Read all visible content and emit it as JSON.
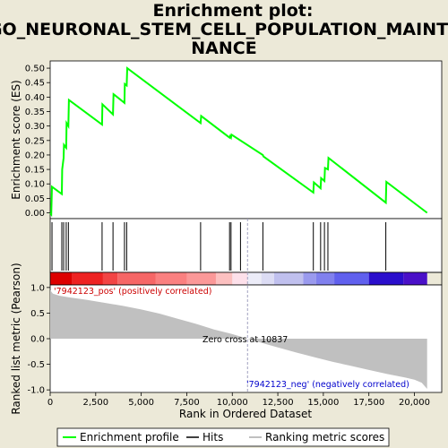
{
  "chart_data": {
    "type": "line",
    "title_lines": [
      "Enrichment plot:",
      "GO_NEURONAL_STEM_CELL_POPULATION_MAINTE",
      "NANCE"
    ],
    "top_panel": {
      "ylabel": "Enrichment score (ES)",
      "ylim": [
        -0.02,
        0.525
      ],
      "yticks": [
        0.0,
        0.05,
        0.1,
        0.15,
        0.2,
        0.25,
        0.3,
        0.35,
        0.4,
        0.45,
        0.5
      ],
      "ytick_labels": [
        "0.00",
        "0.05",
        "0.10",
        "0.15",
        "0.20",
        "0.25",
        "0.30",
        "0.35",
        "0.40",
        "0.45",
        "0.50"
      ],
      "series": [
        {
          "name": "Enrichment profile",
          "color": "#00ff00",
          "x": [
            0,
            60,
            100,
            640,
            660,
            740,
            760,
            880,
            900,
            1000,
            1030,
            2850,
            2870,
            3450,
            3480,
            4080,
            4100,
            4200,
            4230,
            8260,
            8290,
            9850,
            9880,
            9930,
            9960,
            11680,
            11710,
            14450,
            14480,
            14850,
            14880,
            15060,
            15090,
            15250,
            15280,
            18430,
            18460,
            20700
          ],
          "y": [
            0.0,
            -0.005,
            0.09,
            0.065,
            0.15,
            0.19,
            0.235,
            0.225,
            0.31,
            0.3,
            0.39,
            0.305,
            0.375,
            0.34,
            0.41,
            0.38,
            0.445,
            0.44,
            0.5,
            0.31,
            0.335,
            0.26,
            0.265,
            0.26,
            0.27,
            0.2,
            0.195,
            0.07,
            0.105,
            0.085,
            0.12,
            0.11,
            0.155,
            0.15,
            0.19,
            0.035,
            0.107,
            0.0
          ]
        }
      ]
    },
    "hits": [
      100,
      640,
      740,
      880,
      1000,
      2850,
      3450,
      4080,
      4200,
      8260,
      9850,
      9930,
      10450,
      11680,
      14450,
      14850,
      15060,
      15250,
      18430
    ],
    "colorbar": {
      "segments": [
        {
          "from": 0,
          "to": 1200,
          "color": "#dd0000"
        },
        {
          "from": 1200,
          "to": 2900,
          "color": "#ee2222"
        },
        {
          "from": 2900,
          "to": 3700,
          "color": "#f24444"
        },
        {
          "from": 3700,
          "to": 5800,
          "color": "#f66666"
        },
        {
          "from": 5800,
          "to": 7500,
          "color": "#fa8080"
        },
        {
          "from": 7500,
          "to": 9100,
          "color": "#fb9898"
        },
        {
          "from": 9100,
          "to": 10000,
          "color": "#fcc0c0"
        },
        {
          "from": 10000,
          "to": 10850,
          "color": "#fde0ea"
        },
        {
          "from": 10850,
          "to": 11600,
          "color": "#ececf8"
        },
        {
          "from": 11600,
          "to": 12300,
          "color": "#dcdcf4"
        },
        {
          "from": 12300,
          "to": 13900,
          "color": "#c0c0ee"
        },
        {
          "from": 13900,
          "to": 14600,
          "color": "#9a9aee"
        },
        {
          "from": 14600,
          "to": 15600,
          "color": "#8080ee"
        },
        {
          "from": 15600,
          "to": 17500,
          "color": "#6060ee"
        },
        {
          "from": 17500,
          "to": 19400,
          "color": "#2a0ecc"
        },
        {
          "from": 19400,
          "to": 20700,
          "color": "#4a10c8"
        }
      ]
    },
    "bottom_panel": {
      "ylabel": "Ranked list metric (Pearson)",
      "xlabel": "Rank in Ordered Dataset",
      "ylim": [
        -1.05,
        1.05
      ],
      "yticks": [
        1.0,
        0.5,
        0.0,
        -0.5,
        -1.0
      ],
      "ytick_labels": [
        "1.0",
        "0.5",
        "0.0",
        "-0.5",
        "-1.0"
      ],
      "metric": {
        "color": "#c0c0c0",
        "x": [
          0,
          150,
          500,
          1000,
          2000,
          3000,
          4000,
          5000,
          6000,
          7000,
          8000,
          9000,
          10000,
          10837,
          11500,
          12500,
          13500,
          14500,
          15500,
          16500,
          17500,
          18500,
          19500,
          20000,
          20400,
          20700
        ],
        "y": [
          0.95,
          0.88,
          0.84,
          0.81,
          0.76,
          0.7,
          0.64,
          0.57,
          0.49,
          0.39,
          0.29,
          0.18,
          0.09,
          0.0,
          -0.07,
          -0.17,
          -0.27,
          -0.36,
          -0.45,
          -0.53,
          -0.61,
          -0.69,
          -0.76,
          -0.8,
          -0.86,
          -0.98
        ]
      },
      "zero_cross": 10837,
      "annotations": {
        "pos_label": "'7942123_pos' (positively correlated)",
        "neg_label": "'7942123_neg' (negatively correlated)",
        "zero_label": "Zero cross at 10837"
      }
    },
    "xlim": [
      0,
      21500
    ],
    "xticks": [
      0,
      2500,
      5000,
      7500,
      10000,
      12500,
      15000,
      17500,
      20000
    ],
    "xtick_labels": [
      "0",
      "2,500",
      "5,000",
      "7,500",
      "10,000",
      "12,500",
      "15,000",
      "17,500",
      "20,000"
    ],
    "legend": [
      {
        "label": "Enrichment profile",
        "color": "#00ff00"
      },
      {
        "label": "Hits",
        "color": "#000000"
      },
      {
        "label": "Ranking metric scores",
        "color": "#c0c0c0"
      }
    ],
    "colors": {
      "pos_text": "#cc0000",
      "neg_text": "#0000cc",
      "zero_line": "#a0a0c0"
    }
  }
}
